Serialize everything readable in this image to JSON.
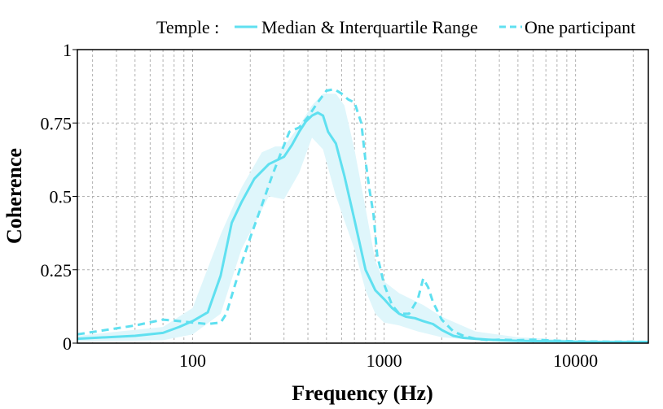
{
  "chart_data": {
    "type": "line",
    "x_scale": "log",
    "xlabel": "Frequency (Hz)",
    "ylabel": "Coherence",
    "xlim": [
      25,
      24000
    ],
    "ylim": [
      0,
      1
    ],
    "x_ticks": [
      {
        "value": 100,
        "label": "100"
      },
      {
        "value": 1000,
        "label": "1000"
      },
      {
        "value": 10000,
        "label": "10000"
      }
    ],
    "y_ticks": [
      {
        "value": 0,
        "label": "0"
      },
      {
        "value": 0.25,
        "label": "0.25"
      },
      {
        "value": 0.5,
        "label": "0.5"
      },
      {
        "value": 0.75,
        "label": "0.75"
      },
      {
        "value": 1,
        "label": "1"
      }
    ],
    "grid": true,
    "legend": {
      "position": "top-right",
      "title": "Temple :",
      "entries": [
        {
          "label": "Median & Interquartile Range",
          "style": "solid"
        },
        {
          "label": "One participant",
          "style": "dashed"
        }
      ]
    },
    "colors": {
      "line": "#5fe0f0",
      "band": "#dff6fb",
      "grid": "#b0b0b0"
    },
    "series": [
      {
        "name": "Median",
        "style": "solid",
        "x": [
          25,
          50,
          70,
          85,
          100,
          120,
          140,
          160,
          180,
          210,
          250,
          300,
          330,
          360,
          390,
          420,
          450,
          480,
          510,
          560,
          620,
          700,
          800,
          900,
          1000,
          1100,
          1200,
          1300,
          1450,
          1600,
          1800,
          2000,
          2300,
          2600,
          3000,
          3500,
          4000,
          5000,
          6000,
          8000,
          10000,
          15000,
          20000,
          24000
        ],
        "values": [
          0.015,
          0.025,
          0.035,
          0.055,
          0.075,
          0.105,
          0.23,
          0.41,
          0.48,
          0.56,
          0.61,
          0.635,
          0.675,
          0.72,
          0.755,
          0.775,
          0.785,
          0.775,
          0.72,
          0.68,
          0.57,
          0.42,
          0.25,
          0.18,
          0.15,
          0.12,
          0.1,
          0.09,
          0.085,
          0.075,
          0.065,
          0.045,
          0.025,
          0.018,
          0.015,
          0.012,
          0.01,
          0.008,
          0.007,
          0.006,
          0.005,
          0.004,
          0.004,
          0.004
        ]
      },
      {
        "name": "Q1",
        "style": "band-lower",
        "x": [
          25,
          70,
          100,
          140,
          180,
          250,
          300,
          360,
          420,
          480,
          560,
          700,
          800,
          900,
          1000,
          1200,
          1500,
          2000,
          3000,
          5000,
          10000,
          24000
        ],
        "values": [
          0.005,
          0.01,
          0.03,
          0.1,
          0.32,
          0.5,
          0.49,
          0.58,
          0.7,
          0.66,
          0.5,
          0.32,
          0.18,
          0.1,
          0.07,
          0.06,
          0.04,
          0.02,
          0.01,
          0.005,
          0.003,
          0.002
        ]
      },
      {
        "name": "Q3",
        "style": "band-upper",
        "x": [
          25,
          70,
          100,
          140,
          180,
          230,
          270,
          300,
          360,
          420,
          480,
          560,
          620,
          700,
          800,
          900,
          1000,
          1200,
          1600,
          2000,
          3000,
          5000,
          10000,
          24000
        ],
        "values": [
          0.025,
          0.055,
          0.12,
          0.37,
          0.53,
          0.65,
          0.67,
          0.67,
          0.74,
          0.81,
          0.85,
          0.85,
          0.81,
          0.66,
          0.46,
          0.28,
          0.21,
          0.17,
          0.13,
          0.09,
          0.04,
          0.02,
          0.01,
          0.008
        ]
      },
      {
        "name": "One participant",
        "style": "dashed",
        "x": [
          25,
          50,
          70,
          85,
          100,
          120,
          140,
          150,
          165,
          180,
          200,
          230,
          260,
          290,
          320,
          360,
          400,
          450,
          500,
          550,
          600,
          650,
          700,
          760,
          800,
          840,
          880,
          920,
          1000,
          1100,
          1200,
          1350,
          1500,
          1600,
          1700,
          1800,
          2000,
          2300,
          2600,
          3000,
          3500,
          4000,
          5000,
          6000,
          8000,
          10000,
          15000,
          20000,
          24000
        ],
        "values": [
          0.03,
          0.06,
          0.08,
          0.075,
          0.07,
          0.065,
          0.07,
          0.1,
          0.19,
          0.27,
          0.36,
          0.47,
          0.57,
          0.65,
          0.72,
          0.735,
          0.77,
          0.82,
          0.86,
          0.865,
          0.85,
          0.83,
          0.82,
          0.75,
          0.62,
          0.52,
          0.44,
          0.3,
          0.2,
          0.13,
          0.1,
          0.1,
          0.15,
          0.22,
          0.19,
          0.14,
          0.08,
          0.04,
          0.025,
          0.015,
          0.01,
          0.012,
          0.01,
          0.012,
          0.008,
          0.006,
          0.005,
          0.005,
          0.004
        ]
      }
    ]
  }
}
